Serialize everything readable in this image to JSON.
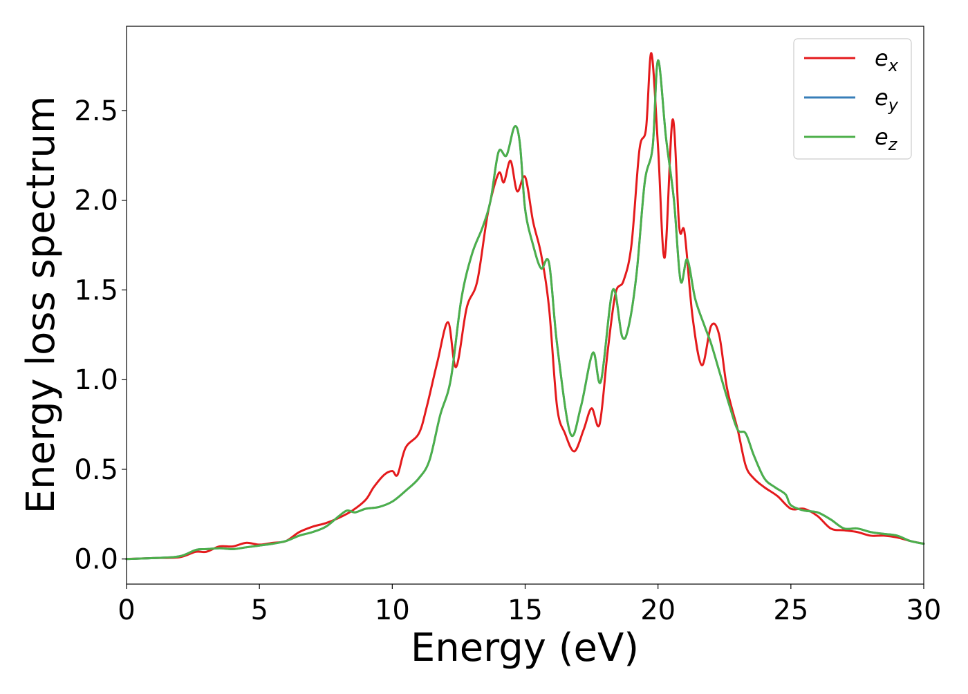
{
  "chart_data": {
    "type": "line",
    "title": "",
    "xlabel": "Energy (eV)",
    "ylabel": "Energy loss spectrum",
    "xlim": [
      0,
      30
    ],
    "ylim": [
      -0.14,
      2.97
    ],
    "xticks": [
      "0",
      "5",
      "10",
      "15",
      "20",
      "25",
      "30"
    ],
    "yticks": [
      "0.0",
      "0.5",
      "1.0",
      "1.5",
      "2.0",
      "2.5"
    ],
    "grid": false,
    "legend_position": "top-right",
    "series": [
      {
        "name": "e_x",
        "label_main": "e",
        "label_sub": "x",
        "color": "#e41a1c",
        "x": [
          0,
          1,
          2,
          2.6,
          3,
          3.5,
          4,
          4.5,
          5,
          5.5,
          6,
          6.5,
          7,
          7.5,
          8,
          8.5,
          9,
          9.3,
          9.7,
          10,
          10.2,
          10.5,
          11,
          11.3,
          11.7,
          12.1,
          12.4,
          12.8,
          13.2,
          13.6,
          14.0,
          14.2,
          14.45,
          14.7,
          15.0,
          15.3,
          15.6,
          15.9,
          16.2,
          16.5,
          16.85,
          17.2,
          17.5,
          17.8,
          18.1,
          18.4,
          18.7,
          19.0,
          19.3,
          19.55,
          19.75,
          20.0,
          20.25,
          20.55,
          20.8,
          21.0,
          21.3,
          21.65,
          22.0,
          22.3,
          22.6,
          23.0,
          23.3,
          23.6,
          24.0,
          24.5,
          25,
          25.5,
          26,
          26.5,
          27,
          27.5,
          28,
          28.5,
          29,
          29.5,
          30
        ],
        "y": [
          0.0,
          0.005,
          0.01,
          0.04,
          0.04,
          0.07,
          0.07,
          0.09,
          0.08,
          0.09,
          0.1,
          0.15,
          0.18,
          0.2,
          0.23,
          0.27,
          0.33,
          0.4,
          0.47,
          0.49,
          0.47,
          0.62,
          0.7,
          0.85,
          1.1,
          1.32,
          1.07,
          1.4,
          1.55,
          1.93,
          2.15,
          2.1,
          2.22,
          2.05,
          2.13,
          1.88,
          1.7,
          1.4,
          0.85,
          0.7,
          0.6,
          0.72,
          0.84,
          0.75,
          1.15,
          1.48,
          1.55,
          1.75,
          2.28,
          2.4,
          2.82,
          2.3,
          1.68,
          2.45,
          1.85,
          1.82,
          1.35,
          1.08,
          1.3,
          1.25,
          0.95,
          0.72,
          0.52,
          0.45,
          0.4,
          0.35,
          0.28,
          0.28,
          0.24,
          0.17,
          0.16,
          0.15,
          0.13,
          0.13,
          0.12,
          0.1,
          0.085
        ]
      },
      {
        "name": "e_y",
        "label_main": "e",
        "label_sub": "y",
        "color": "#377eb8",
        "x": [
          0,
          1,
          2,
          2.6,
          3,
          3.5,
          4,
          4.5,
          5,
          5.5,
          6,
          6.5,
          7,
          7.5,
          8,
          8.3,
          8.6,
          9,
          9.5,
          10,
          10.5,
          11,
          11.4,
          11.8,
          12.2,
          12.6,
          13.0,
          13.4,
          13.7,
          14.0,
          14.3,
          14.6,
          14.8,
          15.0,
          15.3,
          15.6,
          15.9,
          16.2,
          16.7,
          17.1,
          17.55,
          17.85,
          18.3,
          18.65,
          18.9,
          19.2,
          19.5,
          19.8,
          20.0,
          20.3,
          20.6,
          20.85,
          21.1,
          21.4,
          21.75,
          22.0,
          22.3,
          22.7,
          23.0,
          23.3,
          23.6,
          24.0,
          24.4,
          24.8,
          25,
          25.5,
          26,
          26.5,
          27,
          27.5,
          28,
          28.5,
          29,
          29.5,
          30
        ],
        "y": [
          0.0,
          0.005,
          0.015,
          0.05,
          0.055,
          0.06,
          0.055,
          0.065,
          0.075,
          0.085,
          0.1,
          0.13,
          0.15,
          0.18,
          0.24,
          0.27,
          0.26,
          0.28,
          0.29,
          0.32,
          0.38,
          0.45,
          0.55,
          0.8,
          1.0,
          1.45,
          1.7,
          1.85,
          2.0,
          2.27,
          2.25,
          2.41,
          2.32,
          1.95,
          1.75,
          1.62,
          1.65,
          1.2,
          0.7,
          0.85,
          1.15,
          0.99,
          1.5,
          1.24,
          1.3,
          1.6,
          2.1,
          2.3,
          2.78,
          2.35,
          2.0,
          1.55,
          1.67,
          1.45,
          1.3,
          1.2,
          1.05,
          0.85,
          0.72,
          0.7,
          0.58,
          0.45,
          0.4,
          0.36,
          0.3,
          0.27,
          0.26,
          0.22,
          0.17,
          0.17,
          0.15,
          0.14,
          0.13,
          0.1,
          0.085
        ]
      },
      {
        "name": "e_z",
        "label_main": "e",
        "label_sub": "z",
        "color": "#4daf4a",
        "x": [
          0,
          1,
          2,
          2.6,
          3,
          3.5,
          4,
          4.5,
          5,
          5.5,
          6,
          6.5,
          7,
          7.5,
          8,
          8.3,
          8.6,
          9,
          9.5,
          10,
          10.5,
          11,
          11.4,
          11.8,
          12.2,
          12.6,
          13.0,
          13.4,
          13.7,
          14.0,
          14.3,
          14.6,
          14.8,
          15.0,
          15.3,
          15.6,
          15.9,
          16.2,
          16.7,
          17.1,
          17.55,
          17.85,
          18.3,
          18.65,
          18.9,
          19.2,
          19.5,
          19.8,
          20.0,
          20.3,
          20.6,
          20.85,
          21.1,
          21.4,
          21.75,
          22.0,
          22.3,
          22.7,
          23.0,
          23.3,
          23.6,
          24.0,
          24.4,
          24.8,
          25,
          25.5,
          26,
          26.5,
          27,
          27.5,
          28,
          28.5,
          29,
          29.5,
          30
        ],
        "y": [
          0.0,
          0.005,
          0.015,
          0.05,
          0.055,
          0.06,
          0.055,
          0.065,
          0.075,
          0.085,
          0.1,
          0.13,
          0.15,
          0.18,
          0.24,
          0.27,
          0.26,
          0.28,
          0.29,
          0.32,
          0.38,
          0.45,
          0.55,
          0.8,
          1.0,
          1.45,
          1.7,
          1.85,
          2.0,
          2.27,
          2.25,
          2.41,
          2.32,
          1.95,
          1.75,
          1.62,
          1.65,
          1.2,
          0.7,
          0.85,
          1.15,
          0.99,
          1.5,
          1.24,
          1.3,
          1.6,
          2.1,
          2.3,
          2.78,
          2.35,
          2.0,
          1.55,
          1.67,
          1.45,
          1.3,
          1.2,
          1.05,
          0.85,
          0.72,
          0.7,
          0.58,
          0.45,
          0.4,
          0.36,
          0.3,
          0.27,
          0.26,
          0.22,
          0.17,
          0.17,
          0.15,
          0.14,
          0.13,
          0.1,
          0.085
        ]
      }
    ]
  }
}
